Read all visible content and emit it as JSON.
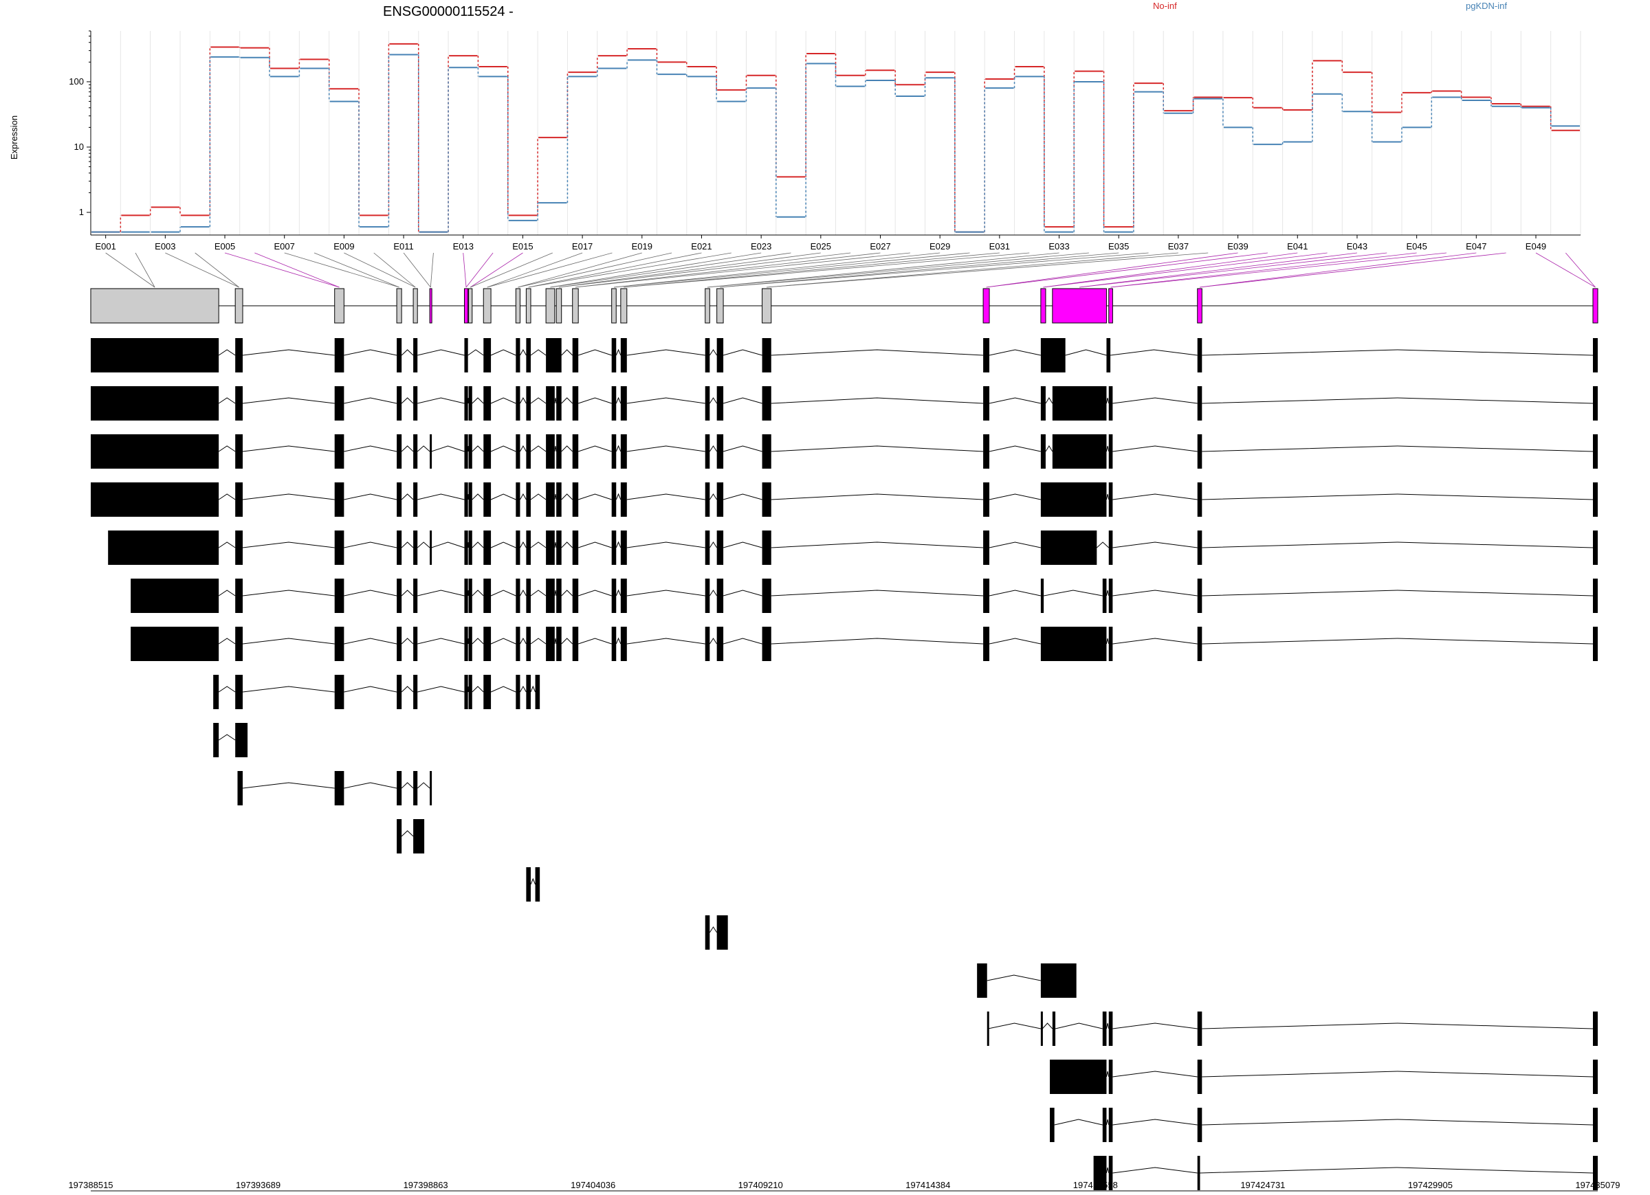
{
  "chart_data": {
    "type": "line",
    "title": "ENSG00000115524 -",
    "ylabel": "Expression",
    "y_scale": "log",
    "y_ticks": [
      1,
      10,
      100
    ],
    "ylim": [
      0.45,
      600
    ],
    "legend": "top",
    "grid": true,
    "exon_labels": [
      "E001",
      "E003",
      "E005",
      "E007",
      "E009",
      "E011",
      "E013",
      "E015",
      "E017",
      "E019",
      "E021",
      "E023",
      "E025",
      "E027",
      "E029",
      "E031",
      "E033",
      "E035",
      "E037",
      "E039",
      "E041",
      "E043",
      "E045",
      "E047",
      "E049"
    ],
    "series": [
      {
        "name": "No-inf",
        "color": "#d62728",
        "values": [
          0.5,
          0.9,
          1.2,
          0.9,
          340,
          330,
          160,
          220,
          78,
          0.9,
          380,
          0.5,
          250,
          170,
          0.9,
          14,
          140,
          250,
          320,
          200,
          170,
          75,
          125,
          3.5,
          270,
          125,
          150,
          90,
          140,
          0.5,
          110,
          170,
          0.6,
          145,
          0.6,
          95,
          36,
          58,
          57,
          40,
          37,
          210,
          140,
          34,
          68,
          72,
          58,
          46,
          42,
          18
        ]
      },
      {
        "name": "pgKDN-inf",
        "color": "#4682b4",
        "values": [
          0.5,
          0.5,
          0.5,
          0.6,
          240,
          235,
          120,
          160,
          50,
          0.6,
          260,
          0.5,
          165,
          120,
          0.75,
          1.4,
          120,
          160,
          215,
          130,
          120,
          50,
          80,
          0.85,
          190,
          85,
          105,
          60,
          115,
          0.5,
          80,
          120,
          0.5,
          100,
          0.5,
          70,
          33,
          55,
          20,
          11,
          12,
          65,
          35,
          12,
          20,
          58,
          52,
          42,
          40,
          21
        ]
      }
    ],
    "genomic_ticks": [
      "197388515",
      "197393689",
      "197398863",
      "197404036",
      "197409210",
      "197414384",
      "197419558",
      "197424731",
      "197429905",
      "197435079"
    ],
    "genome_range": [
      197388515,
      197435079
    ],
    "highlight_color": "#ff00ff",
    "transcripts": [
      [
        [
          197388515,
          197392470
        ],
        [
          197392980,
          197393210
        ],
        [
          197396050,
          197396340
        ],
        [
          197397970,
          197398120
        ],
        [
          197398480,
          197398610
        ],
        [
          197400060,
          197400170
        ],
        [
          197400650,
          197400880
        ],
        [
          197401650,
          197401780
        ],
        [
          197401970,
          197402110
        ],
        [
          197402580,
          197403060
        ],
        [
          197403400,
          197403580
        ],
        [
          197404610,
          197404750
        ],
        [
          197404890,
          197405080
        ],
        [
          197407500,
          197407640
        ],
        [
          197407860,
          197408060
        ],
        [
          197409260,
          197409540
        ],
        [
          197416090,
          197416280
        ],
        [
          197417870,
          197418630
        ],
        [
          197419900,
          197420020
        ],
        [
          197422710,
          197422850
        ],
        [
          197434930,
          197435079
        ]
      ],
      [
        [
          197388515,
          197392470
        ],
        [
          197392980,
          197393210
        ],
        [
          197396050,
          197396340
        ],
        [
          197397970,
          197398120
        ],
        [
          197398480,
          197398610
        ],
        [
          197400060,
          197400170
        ],
        [
          197400190,
          197400300
        ],
        [
          197400650,
          197400880
        ],
        [
          197401650,
          197401780
        ],
        [
          197401970,
          197402110
        ],
        [
          197402580,
          197402850
        ],
        [
          197402900,
          197403060
        ],
        [
          197403400,
          197403580
        ],
        [
          197404610,
          197404750
        ],
        [
          197404890,
          197405080
        ],
        [
          197407500,
          197407640
        ],
        [
          197407860,
          197408060
        ],
        [
          197409260,
          197409540
        ],
        [
          197416090,
          197416280
        ],
        [
          197417870,
          197418020
        ],
        [
          197418230,
          197419900
        ],
        [
          197419970,
          197420090
        ],
        [
          197422710,
          197422850
        ],
        [
          197434930,
          197435079
        ]
      ],
      [
        [
          197388515,
          197392470
        ],
        [
          197392980,
          197393210
        ],
        [
          197396050,
          197396340
        ],
        [
          197397970,
          197398120
        ],
        [
          197398480,
          197398610
        ],
        [
          197398990,
          197399040
        ],
        [
          197400060,
          197400170
        ],
        [
          197400190,
          197400300
        ],
        [
          197400650,
          197400880
        ],
        [
          197401650,
          197401780
        ],
        [
          197401970,
          197402110
        ],
        [
          197402580,
          197402850
        ],
        [
          197402900,
          197403060
        ],
        [
          197403400,
          197403580
        ],
        [
          197404610,
          197404750
        ],
        [
          197404890,
          197405080
        ],
        [
          197407500,
          197407640
        ],
        [
          197407860,
          197408060
        ],
        [
          197409260,
          197409540
        ],
        [
          197416090,
          197416280
        ],
        [
          197417870,
          197418020
        ],
        [
          197418230,
          197419900
        ],
        [
          197419970,
          197420090
        ],
        [
          197422710,
          197422850
        ],
        [
          197434930,
          197435079
        ]
      ],
      [
        [
          197388515,
          197392470
        ],
        [
          197392980,
          197393210
        ],
        [
          197396050,
          197396340
        ],
        [
          197397970,
          197398120
        ],
        [
          197398480,
          197398610
        ],
        [
          197400060,
          197400170
        ],
        [
          197400190,
          197400300
        ],
        [
          197400650,
          197400880
        ],
        [
          197401650,
          197401780
        ],
        [
          197401970,
          197402110
        ],
        [
          197402580,
          197402850
        ],
        [
          197402900,
          197403060
        ],
        [
          197403400,
          197403580
        ],
        [
          197404610,
          197404750
        ],
        [
          197404890,
          197405080
        ],
        [
          197407500,
          197407640
        ],
        [
          197407860,
          197408060
        ],
        [
          197409260,
          197409540
        ],
        [
          197416090,
          197416280
        ],
        [
          197417870,
          197419900
        ],
        [
          197419970,
          197420090
        ],
        [
          197422710,
          197422850
        ],
        [
          197434930,
          197435079
        ]
      ],
      [
        [
          197389050,
          197392470
        ],
        [
          197392980,
          197393210
        ],
        [
          197396050,
          197396340
        ],
        [
          197397970,
          197398120
        ],
        [
          197398480,
          197398610
        ],
        [
          197398990,
          197399040
        ],
        [
          197400060,
          197400170
        ],
        [
          197400190,
          197400300
        ],
        [
          197400650,
          197400880
        ],
        [
          197401650,
          197401780
        ],
        [
          197401970,
          197402110
        ],
        [
          197402580,
          197402850
        ],
        [
          197402900,
          197403060
        ],
        [
          197403400,
          197403580
        ],
        [
          197404610,
          197404750
        ],
        [
          197404890,
          197405080
        ],
        [
          197407500,
          197407640
        ],
        [
          197407860,
          197408060
        ],
        [
          197409260,
          197409540
        ],
        [
          197416090,
          197416280
        ],
        [
          197417870,
          197419600
        ],
        [
          197419970,
          197420090
        ],
        [
          197422710,
          197422850
        ],
        [
          197434930,
          197435079
        ]
      ],
      [
        [
          197389750,
          197392470
        ],
        [
          197392980,
          197393210
        ],
        [
          197396050,
          197396340
        ],
        [
          197397970,
          197398120
        ],
        [
          197398480,
          197398610
        ],
        [
          197400060,
          197400170
        ],
        [
          197400190,
          197400300
        ],
        [
          197400650,
          197400880
        ],
        [
          197401650,
          197401780
        ],
        [
          197401970,
          197402110
        ],
        [
          197402580,
          197402850
        ],
        [
          197402900,
          197403060
        ],
        [
          197403400,
          197403580
        ],
        [
          197404610,
          197404750
        ],
        [
          197404890,
          197405080
        ],
        [
          197407500,
          197407640
        ],
        [
          197407860,
          197408060
        ],
        [
          197409260,
          197409540
        ],
        [
          197416090,
          197416280
        ],
        [
          197417870,
          197417960
        ],
        [
          197419780,
          197419900
        ],
        [
          197419970,
          197420090
        ],
        [
          197422710,
          197422850
        ],
        [
          197434930,
          197435079
        ]
      ],
      [
        [
          197389750,
          197392470
        ],
        [
          197392980,
          197393210
        ],
        [
          197396050,
          197396340
        ],
        [
          197397970,
          197398120
        ],
        [
          197398480,
          197398610
        ],
        [
          197400060,
          197400170
        ],
        [
          197400190,
          197400300
        ],
        [
          197400650,
          197400880
        ],
        [
          197401650,
          197401780
        ],
        [
          197401970,
          197402110
        ],
        [
          197402580,
          197402850
        ],
        [
          197402900,
          197403060
        ],
        [
          197403400,
          197403580
        ],
        [
          197404610,
          197404750
        ],
        [
          197404890,
          197405080
        ],
        [
          197407500,
          197407640
        ],
        [
          197407860,
          197408060
        ],
        [
          197409260,
          197409540
        ],
        [
          197416090,
          197416280
        ],
        [
          197417870,
          197419900
        ],
        [
          197419970,
          197420090
        ],
        [
          197422710,
          197422850
        ],
        [
          197434930,
          197435079
        ]
      ],
      [
        [
          197392300,
          197392470
        ],
        [
          197392980,
          197393210
        ],
        [
          197396050,
          197396340
        ],
        [
          197397970,
          197398120
        ],
        [
          197398480,
          197398610
        ],
        [
          197400060,
          197400170
        ],
        [
          197400190,
          197400300
        ],
        [
          197400650,
          197400880
        ],
        [
          197401650,
          197401780
        ],
        [
          197401970,
          197402110
        ],
        [
          197402250,
          197402390
        ]
      ],
      [
        [
          197392300,
          197392470
        ],
        [
          197392980,
          197393360
        ]
      ],
      [
        [
          197393050,
          197393210
        ],
        [
          197396050,
          197396340
        ],
        [
          197397970,
          197398120
        ],
        [
          197398480,
          197398610
        ],
        [
          197398990,
          197399040
        ]
      ],
      [
        [
          197397970,
          197398120
        ],
        [
          197398480,
          197398820
        ]
      ],
      [
        [
          197401970,
          197402110
        ],
        [
          197402250,
          197402390
        ]
      ],
      [
        [
          197407500,
          197407640
        ],
        [
          197407860,
          197408200
        ]
      ],
      [
        [
          197415900,
          197416210
        ],
        [
          197417870,
          197418970
        ]
      ],
      [
        [
          197416210,
          197416240
        ],
        [
          197417870,
          197417920
        ],
        [
          197418230,
          197418320
        ],
        [
          197419780,
          197419900
        ],
        [
          197419970,
          197420090
        ],
        [
          197422710,
          197422850
        ],
        [
          197434930,
          197435079
        ]
      ],
      [
        [
          197418150,
          197419900
        ],
        [
          197419970,
          197420090
        ],
        [
          197422710,
          197422850
        ],
        [
          197434930,
          197435079
        ]
      ],
      [
        [
          197418150,
          197418290
        ],
        [
          197419780,
          197419900
        ],
        [
          197419970,
          197420090
        ],
        [
          197422710,
          197422850
        ],
        [
          197434930,
          197435079
        ]
      ],
      [
        [
          197419500,
          197419900
        ],
        [
          197419970,
          197420090
        ],
        [
          197422710,
          197422790
        ],
        [
          197434930,
          197435079
        ]
      ]
    ]
  }
}
